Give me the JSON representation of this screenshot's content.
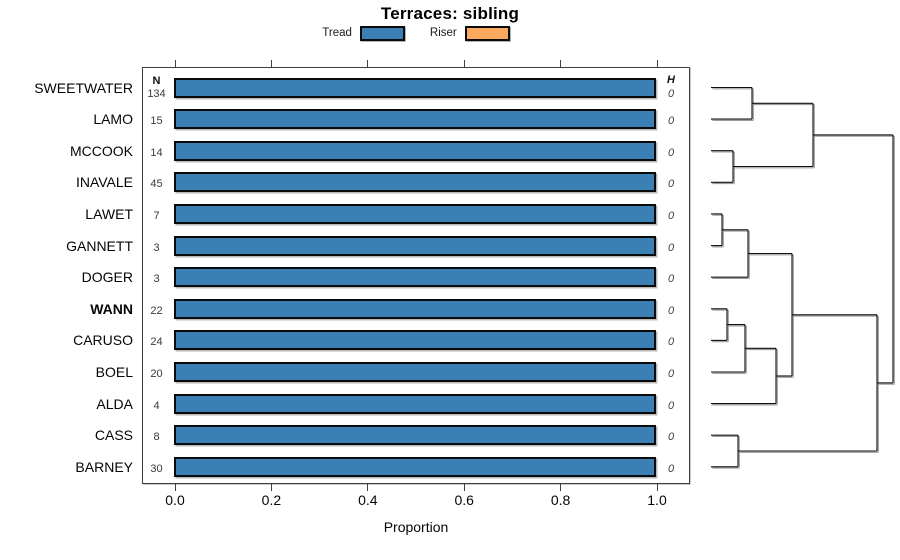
{
  "title": "Terraces: sibling",
  "legend": [
    {
      "label": "Tread",
      "color": "#3B80B5"
    },
    {
      "label": "Riser",
      "color": "#FAA95F"
    }
  ],
  "columns": {
    "n_header": "N",
    "h_header": "H"
  },
  "axis": {
    "label": "Proportion",
    "ticks": [
      "0.0",
      "0.2",
      "0.4",
      "0.6",
      "0.8",
      "1.0"
    ]
  },
  "chart_data": {
    "type": "bar",
    "orientation": "horizontal",
    "title": "Terraces: sibling",
    "xlabel": "Proportion",
    "xlim": [
      0,
      1
    ],
    "legend_position": "top",
    "categories": [
      "SWEETWATER",
      "LAMO",
      "MCCOOK",
      "INAVALE",
      "LAWET",
      "GANNETT",
      "DOGER",
      "WANN",
      "CARUSO",
      "BOEL",
      "ALDA",
      "CASS",
      "BARNEY"
    ],
    "bold_categories": [
      "WANN"
    ],
    "series": [
      {
        "name": "Tread",
        "color": "#3B80B5",
        "values": [
          1.0,
          1.0,
          1.0,
          1.0,
          1.0,
          1.0,
          1.0,
          1.0,
          1.0,
          1.0,
          1.0,
          1.0,
          1.0
        ]
      },
      {
        "name": "Riser",
        "color": "#FAA95F",
        "values": [
          0,
          0,
          0,
          0,
          0,
          0,
          0,
          0,
          0,
          0,
          0,
          0,
          0
        ]
      }
    ],
    "N": [
      134,
      15,
      14,
      45,
      7,
      3,
      3,
      22,
      24,
      20,
      4,
      8,
      30
    ],
    "H": [
      0,
      0,
      0,
      0,
      0,
      0,
      0,
      0,
      0,
      0,
      0,
      0,
      0
    ]
  },
  "dendrogram": {
    "leaf_x": 711,
    "root_x": 893,
    "segments": [
      [
        711,
        87.5,
        752,
        87.5
      ],
      [
        711,
        119.1,
        752,
        119.1
      ],
      [
        752,
        87.5,
        752,
        119.1
      ],
      [
        752,
        103.3,
        813,
        103.3
      ],
      [
        711,
        150.7,
        733,
        150.7
      ],
      [
        711,
        182.3,
        733,
        182.3
      ],
      [
        733,
        150.7,
        733,
        182.3
      ],
      [
        733,
        166.5,
        813,
        166.5
      ],
      [
        813,
        103.3,
        813,
        166.5
      ],
      [
        813,
        134.9,
        893,
        134.9
      ],
      [
        711,
        213.9,
        722,
        213.9
      ],
      [
        711,
        245.6,
        722,
        245.6
      ],
      [
        722,
        213.9,
        722,
        245.6
      ],
      [
        722,
        229.8,
        748,
        229.8
      ],
      [
        711,
        277.2,
        748,
        277.2
      ],
      [
        748,
        229.8,
        748,
        277.2
      ],
      [
        748,
        253.5,
        792,
        253.5
      ],
      [
        711,
        308.8,
        727,
        308.8
      ],
      [
        711,
        340.4,
        727,
        340.4
      ],
      [
        727,
        308.8,
        727,
        340.4
      ],
      [
        727,
        324.6,
        745,
        324.6
      ],
      [
        711,
        372.0,
        745,
        372.0
      ],
      [
        745,
        324.6,
        745,
        372.0
      ],
      [
        745,
        348.3,
        776,
        348.3
      ],
      [
        711,
        403.6,
        776,
        403.6
      ],
      [
        776,
        348.3,
        776,
        403.6
      ],
      [
        776,
        376.0,
        792,
        376.0
      ],
      [
        792,
        253.5,
        792,
        376.0
      ],
      [
        792,
        314.8,
        877,
        314.8
      ],
      [
        711,
        435.2,
        738,
        435.2
      ],
      [
        711,
        466.8,
        738,
        466.8
      ],
      [
        738,
        435.2,
        738,
        466.8
      ],
      [
        738,
        451.0,
        877,
        451.0
      ],
      [
        877,
        314.8,
        877,
        451.0
      ],
      [
        877,
        382.9,
        893,
        382.9
      ],
      [
        893,
        134.9,
        893,
        382.9
      ]
    ]
  }
}
